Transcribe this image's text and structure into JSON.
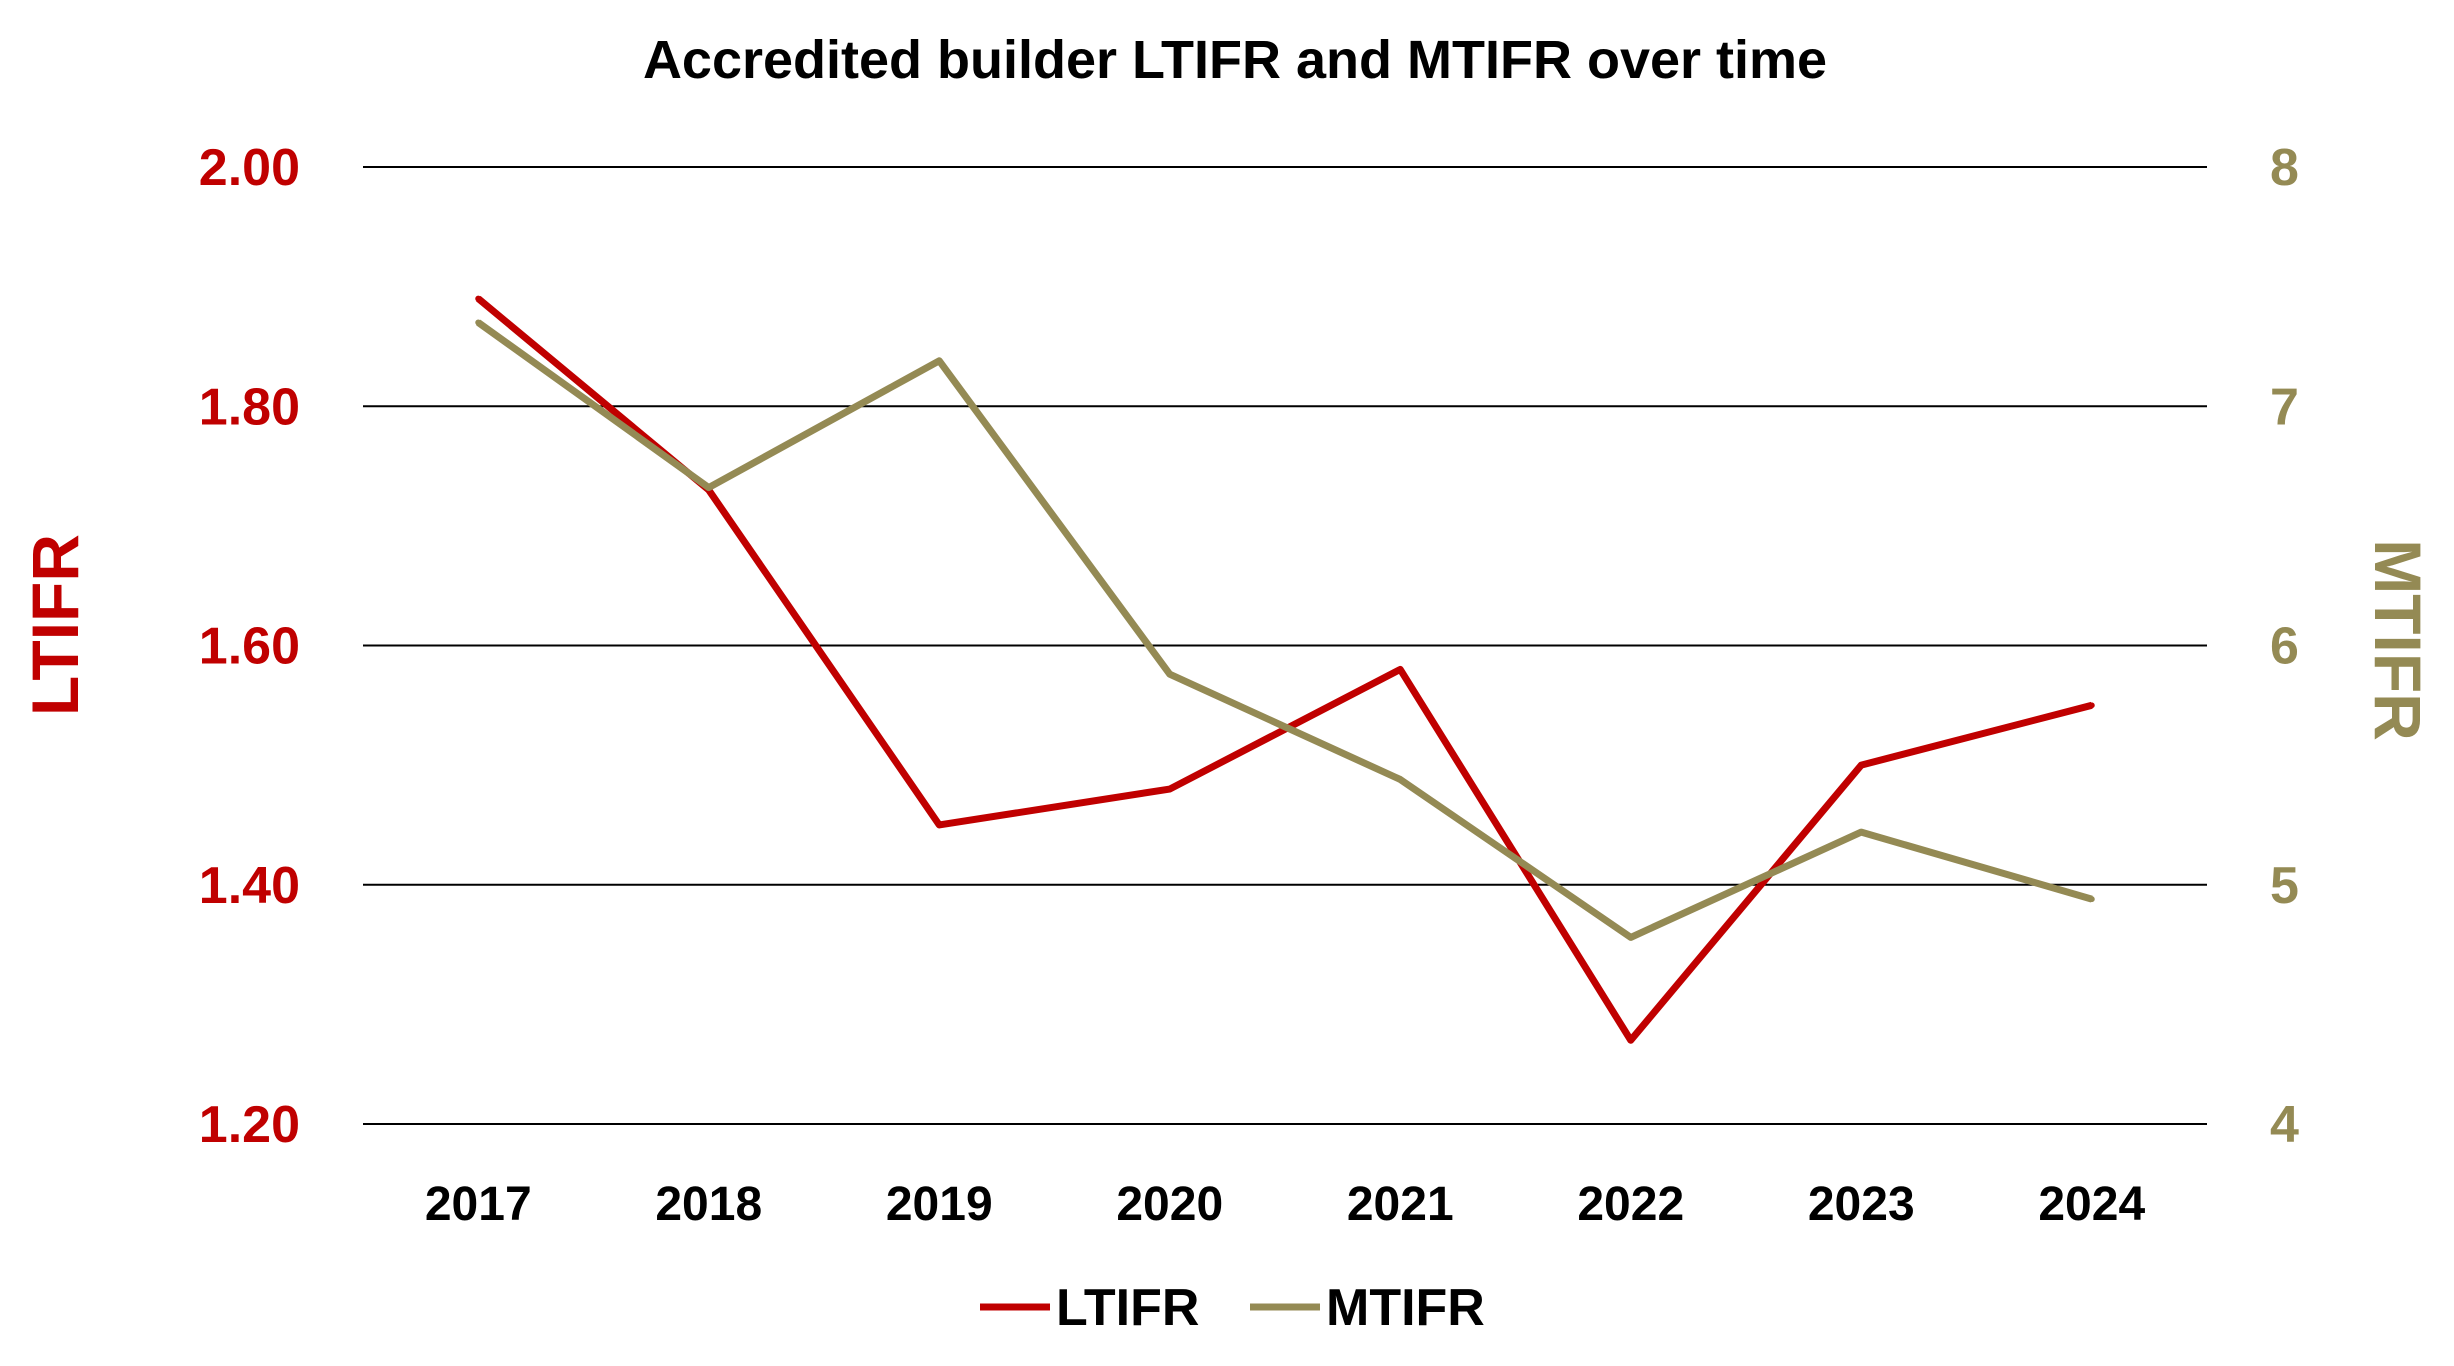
{
  "chart_data": {
    "type": "line",
    "title": "Accredited builder LTIFR and MTIFR over time",
    "categories": [
      "2017",
      "2018",
      "2019",
      "2020",
      "2021",
      "2022",
      "2023",
      "2024"
    ],
    "series": [
      {
        "name": "LTIFR",
        "axis": "left",
        "color": "#C00000",
        "values": [
          1.89,
          1.73,
          1.45,
          1.48,
          1.58,
          1.27,
          1.5,
          1.55
        ]
      },
      {
        "name": "MTIFR",
        "axis": "right",
        "color": "#948A54",
        "values": [
          7.35,
          6.66,
          7.19,
          5.88,
          5.44,
          4.78,
          5.22,
          4.94
        ]
      }
    ],
    "y_left": {
      "label": "LTIFR",
      "ylim": [
        1.2,
        2.0
      ],
      "ticks": [
        "1.20",
        "1.40",
        "1.60",
        "1.80",
        "2.00"
      ],
      "color": "#C00000"
    },
    "y_right": {
      "label": "MTIFR",
      "ylim": [
        4,
        8
      ],
      "ticks": [
        "4",
        "5",
        "6",
        "7",
        "8"
      ],
      "color": "#948A54"
    },
    "grid": true,
    "legend": "bottom"
  }
}
